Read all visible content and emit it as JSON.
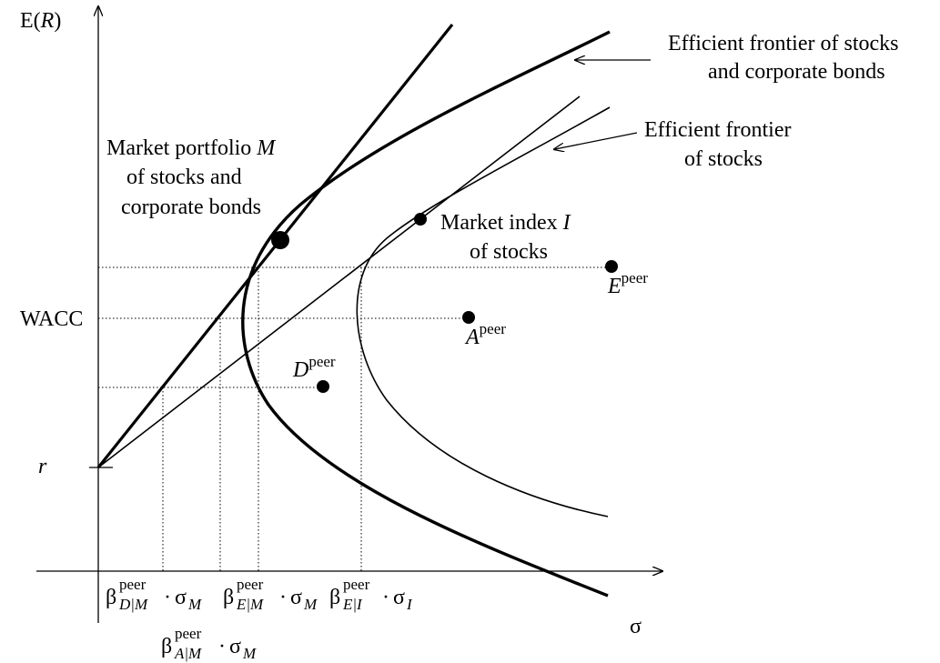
{
  "axes": {
    "y_label_prefix": "E(",
    "y_label_var": "R",
    "y_label_suffix": ")",
    "x_label": "σ",
    "r_label": "r",
    "wacc_label": "WACC"
  },
  "annotations": {
    "frontier_stocks_bonds_line1": "Efficient frontier of stocks",
    "frontier_stocks_bonds_line2": "and corporate bonds",
    "frontier_stocks_line1": "Efficient frontier",
    "frontier_stocks_line2": "of stocks",
    "market_portfolio_line1_text": "Market portfolio ",
    "market_portfolio_line1_var": "M",
    "market_portfolio_line2": "of stocks and",
    "market_portfolio_line3": "corporate bonds",
    "market_index_line1_text": "Market index ",
    "market_index_line1_var": "I",
    "market_index_line2": "of stocks"
  },
  "points": {
    "E_var": "E",
    "A_var": "A",
    "D_var": "D",
    "sup": "peer"
  },
  "ticks": {
    "beta": "β",
    "sup": "peer",
    "dot": "·",
    "sigma": "σ",
    "D_sub": "D|M",
    "E_sub": "E|M",
    "EI_sub": "E|I",
    "A_sub": "A|M",
    "M_sub": "M",
    "I_sub": "I"
  }
}
